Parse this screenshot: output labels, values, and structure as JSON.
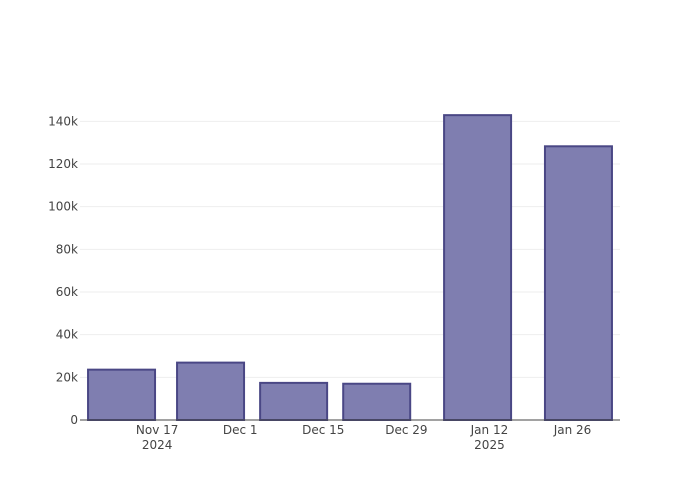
{
  "chart_data": {
    "type": "bar",
    "x": [
      "2024-11-11",
      "2024-11-26",
      "2024-12-10",
      "2024-12-24",
      "2025-01-10",
      "2025-01-27"
    ],
    "values": [
      23600,
      26900,
      17400,
      17000,
      142900,
      128300
    ],
    "color": "#7f7eb0",
    "edge_color": "#4a4785",
    "xlim": [
      "2024-11-04",
      "2025-02-03"
    ],
    "xticks": [
      {
        "value": "2024-11-17",
        "label": "Nov 17\n2024"
      },
      {
        "value": "2024-12-01",
        "label": "Dec 1"
      },
      {
        "value": "2024-12-15",
        "label": "Dec 15"
      },
      {
        "value": "2024-12-29",
        "label": "Dec 29"
      },
      {
        "value": "2025-01-12",
        "label": "Jan 12\n2025"
      },
      {
        "value": "2025-01-26",
        "label": "Jan 26"
      }
    ],
    "ylim": [
      0,
      150000
    ],
    "yticks": [
      0,
      {
        "value": 20000,
        "label": "20k"
      },
      {
        "value": 40000,
        "label": "40k"
      },
      {
        "value": 60000,
        "label": "60k"
      },
      {
        "value": 80000,
        "label": "80k"
      },
      {
        "value": 100000,
        "label": "100k"
      },
      {
        "value": 120000,
        "label": "120k"
      },
      {
        "value": 140000,
        "label": "140k"
      }
    ],
    "grid": true
  }
}
